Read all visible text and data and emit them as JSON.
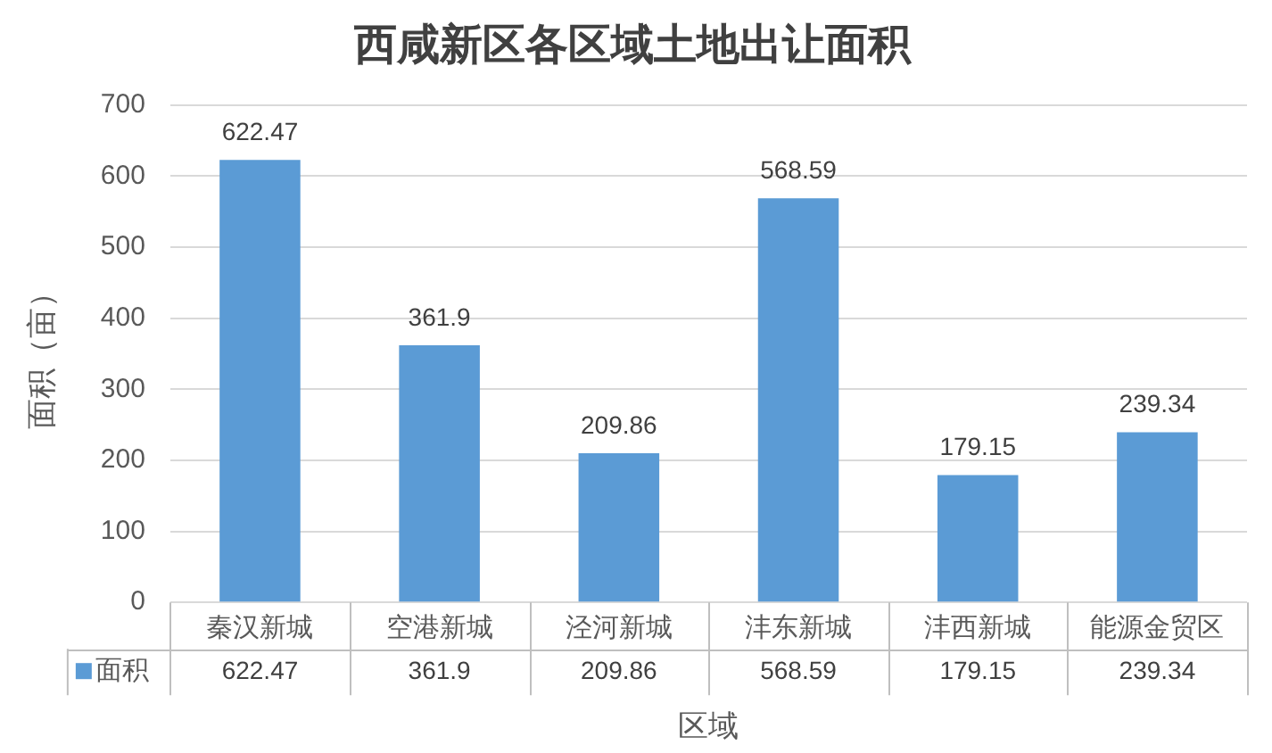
{
  "chart_data": {
    "type": "bar",
    "title": "西咸新区各区域土地出让面积",
    "xlabel": "区域",
    "ylabel": "面积（亩）",
    "categories": [
      "秦汉新城",
      "空港新城",
      "泾河新城",
      "沣东新城",
      "沣西新城",
      "能源金贸区"
    ],
    "series": [
      {
        "name": "面积",
        "color": "#5b9bd5",
        "values": [
          622.47,
          361.9,
          209.86,
          568.59,
          179.15,
          239.34
        ]
      }
    ],
    "annotations": [
      {
        "text": "622.47",
        "x": "秦汉新城",
        "y": 622.47
      },
      {
        "text": "361.9",
        "x": "空港新城",
        "y": 361.9
      },
      {
        "text": "209.86",
        "x": "泾河新城",
        "y": 209.86
      },
      {
        "text": "568.59",
        "x": "沣东新城",
        "y": 568.59
      },
      {
        "text": "179.15",
        "x": "沣西新城",
        "y": 179.15
      },
      {
        "text": "239.34",
        "x": "能源金贸区",
        "y": 239.34
      }
    ],
    "ylim": [
      0,
      700
    ],
    "yticks": [
      0,
      100,
      200,
      300,
      400,
      500,
      600,
      700
    ],
    "grid": "y",
    "legend": "bottom",
    "data_labels": true
  }
}
